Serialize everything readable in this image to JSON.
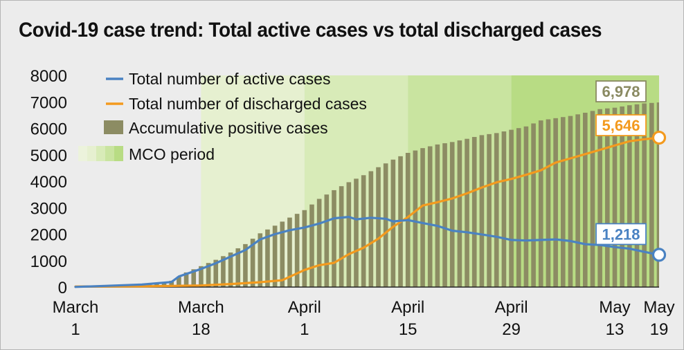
{
  "title": "Covid-19 case trend: Total active cases vs total discharged cases",
  "legend": {
    "active": "Total number of active cases",
    "discharged": "Total number of discharged cases",
    "accumulative": "Accumulative positive cases",
    "mco": "MCO period"
  },
  "callouts": {
    "accumulative": "6,978",
    "discharged": "5,646",
    "active": "1,218"
  },
  "colors": {
    "active": "#4a82c2",
    "discharged": "#f39a1e",
    "accumulative": "#8c8c63",
    "mco_1": "#e6f0d0",
    "mco_2": "#d8ebb8",
    "mco_3": "#c9e4a0",
    "mco_4": "#b8dc84",
    "background": "#ececec"
  },
  "chart_data": {
    "type": "bar+line",
    "ylim": [
      0,
      8000
    ],
    "yticks": [
      0,
      1000,
      2000,
      3000,
      4000,
      5000,
      6000,
      7000,
      8000
    ],
    "xlim": [
      "2020-03-01",
      "2020-05-19"
    ],
    "xticks": [
      {
        "date": "2020-03-01",
        "label": [
          "March",
          "1"
        ]
      },
      {
        "date": "2020-03-18",
        "label": [
          "March",
          "18"
        ]
      },
      {
        "date": "2020-04-01",
        "label": [
          "April",
          "1"
        ]
      },
      {
        "date": "2020-04-15",
        "label": [
          "April",
          "15"
        ]
      },
      {
        "date": "2020-04-29",
        "label": [
          "April",
          "29"
        ]
      },
      {
        "date": "2020-05-13",
        "label": [
          "May",
          "13"
        ]
      },
      {
        "date": "2020-05-19",
        "label": [
          "May",
          "19"
        ]
      }
    ],
    "mco_phases": [
      {
        "start": "2020-03-18",
        "end": "2020-04-01"
      },
      {
        "start": "2020-04-01",
        "end": "2020-04-15"
      },
      {
        "start": "2020-04-15",
        "end": "2020-04-29"
      },
      {
        "start": "2020-04-29",
        "end": "2020-05-19"
      }
    ],
    "series": [
      {
        "name": "Accumulative positive cases",
        "type": "bar",
        "points": [
          [
            "2020-03-01",
            29
          ],
          [
            "2020-03-05",
            50
          ],
          [
            "2020-03-09",
            99
          ],
          [
            "2020-03-12",
            149
          ],
          [
            "2020-03-14",
            238
          ],
          [
            "2020-03-16",
            553
          ],
          [
            "2020-03-18",
            790
          ],
          [
            "2020-03-20",
            1030
          ],
          [
            "2020-03-22",
            1306
          ],
          [
            "2020-03-24",
            1624
          ],
          [
            "2020-03-26",
            2031
          ],
          [
            "2020-03-28",
            2320
          ],
          [
            "2020-03-30",
            2626
          ],
          [
            "2020-04-01",
            2908
          ],
          [
            "2020-04-03",
            3333
          ],
          [
            "2020-04-05",
            3662
          ],
          [
            "2020-04-07",
            3963
          ],
          [
            "2020-04-09",
            4228
          ],
          [
            "2020-04-11",
            4530
          ],
          [
            "2020-04-13",
            4817
          ],
          [
            "2020-04-15",
            5072
          ],
          [
            "2020-04-17",
            5251
          ],
          [
            "2020-04-19",
            5389
          ],
          [
            "2020-04-21",
            5482
          ],
          [
            "2020-04-23",
            5603
          ],
          [
            "2020-04-25",
            5742
          ],
          [
            "2020-04-27",
            5820
          ],
          [
            "2020-04-29",
            5945
          ],
          [
            "2020-05-01",
            6071
          ],
          [
            "2020-05-03",
            6298
          ],
          [
            "2020-05-05",
            6383
          ],
          [
            "2020-05-07",
            6467
          ],
          [
            "2020-05-09",
            6589
          ],
          [
            "2020-05-11",
            6726
          ],
          [
            "2020-05-13",
            6779
          ],
          [
            "2020-05-15",
            6872
          ],
          [
            "2020-05-17",
            6941
          ],
          [
            "2020-05-19",
            6978
          ]
        ]
      },
      {
        "name": "Total number of discharged cases",
        "type": "line",
        "points": [
          [
            "2020-03-01",
            22
          ],
          [
            "2020-03-10",
            25
          ],
          [
            "2020-03-18",
            60
          ],
          [
            "2020-03-22",
            114
          ],
          [
            "2020-03-26",
            183
          ],
          [
            "2020-03-29",
            260
          ],
          [
            "2020-04-01",
            645
          ],
          [
            "2020-04-03",
            827
          ],
          [
            "2020-04-05",
            915
          ],
          [
            "2020-04-07",
            1241
          ],
          [
            "2020-04-09",
            1487
          ],
          [
            "2020-04-11",
            1830
          ],
          [
            "2020-04-13",
            2276
          ],
          [
            "2020-04-15",
            2647
          ],
          [
            "2020-04-17",
            3081
          ],
          [
            "2020-04-19",
            3208
          ],
          [
            "2020-04-21",
            3349
          ],
          [
            "2020-04-23",
            3542
          ],
          [
            "2020-04-25",
            3763
          ],
          [
            "2020-04-27",
            3957
          ],
          [
            "2020-04-29",
            4087
          ],
          [
            "2020-05-01",
            4244
          ],
          [
            "2020-05-03",
            4413
          ],
          [
            "2020-05-05",
            4702
          ],
          [
            "2020-05-07",
            4864
          ],
          [
            "2020-05-09",
            5025
          ],
          [
            "2020-05-11",
            5187
          ],
          [
            "2020-05-13",
            5351
          ],
          [
            "2020-05-15",
            5512
          ],
          [
            "2020-05-17",
            5587
          ],
          [
            "2020-05-19",
            5646
          ]
        ]
      },
      {
        "name": "Total number of active cases",
        "type": "line",
        "points": [
          [
            "2020-03-01",
            4
          ],
          [
            "2020-03-05",
            45
          ],
          [
            "2020-03-10",
            95
          ],
          [
            "2020-03-14",
            190
          ],
          [
            "2020-03-15",
            400
          ],
          [
            "2020-03-18",
            686
          ],
          [
            "2020-03-20",
            900
          ],
          [
            "2020-03-22",
            1150
          ],
          [
            "2020-03-24",
            1400
          ],
          [
            "2020-03-26",
            1800
          ],
          [
            "2020-03-28",
            2000
          ],
          [
            "2020-03-30",
            2150
          ],
          [
            "2020-04-01",
            2250
          ],
          [
            "2020-04-03",
            2400
          ],
          [
            "2020-04-05",
            2600
          ],
          [
            "2020-04-07",
            2650
          ],
          [
            "2020-04-08",
            2560
          ],
          [
            "2020-04-10",
            2620
          ],
          [
            "2020-04-12",
            2580
          ],
          [
            "2020-04-13",
            2480
          ],
          [
            "2020-04-15",
            2530
          ],
          [
            "2020-04-17",
            2420
          ],
          [
            "2020-04-19",
            2310
          ],
          [
            "2020-04-21",
            2130
          ],
          [
            "2020-04-23",
            2070
          ],
          [
            "2020-04-25",
            1990
          ],
          [
            "2020-04-27",
            1900
          ],
          [
            "2020-04-29",
            1780
          ],
          [
            "2020-05-01",
            1760
          ],
          [
            "2020-05-03",
            1780
          ],
          [
            "2020-05-05",
            1800
          ],
          [
            "2020-05-07",
            1740
          ],
          [
            "2020-05-09",
            1620
          ],
          [
            "2020-05-11",
            1590
          ],
          [
            "2020-05-13",
            1510
          ],
          [
            "2020-05-15",
            1450
          ],
          [
            "2020-05-17",
            1330
          ],
          [
            "2020-05-19",
            1218
          ]
        ]
      }
    ]
  }
}
